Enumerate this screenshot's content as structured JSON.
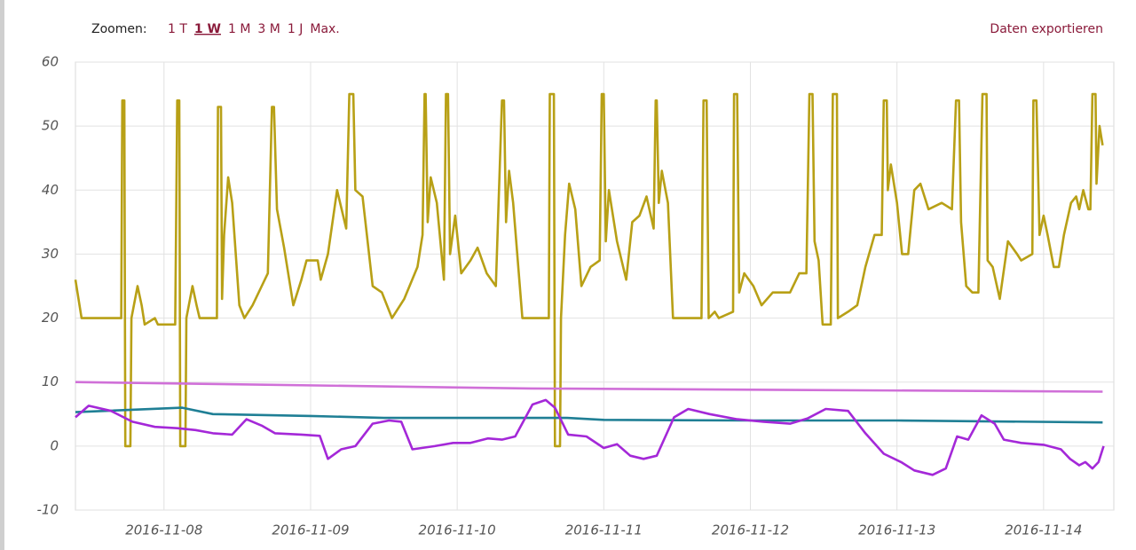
{
  "toolbar": {
    "label": "Zoomen:",
    "zoom": [
      "1 T",
      "1 W",
      "1 M",
      "3 M",
      "1 J",
      "Max."
    ],
    "active": 1,
    "export": "Daten exportieren"
  },
  "chart_data": {
    "type": "line",
    "grid": true,
    "xlim": [
      "2016-11-07T09:30",
      "2016-11-14T11:30"
    ],
    "xticks": [
      "2016-11-08",
      "2016-11-09",
      "2016-11-10",
      "2016-11-11",
      "2016-11-12",
      "2016-11-13",
      "2016-11-14"
    ],
    "ylim": [
      -10,
      60
    ],
    "yticks": [
      -10,
      0,
      10,
      20,
      30,
      40,
      50,
      60
    ],
    "series": [
      {
        "color": "#b8a016",
        "x": [
          "2016-11-07T09:30",
          "2016-11-07T10:30",
          "2016-11-07T17:00",
          "2016-11-07T17:10",
          "2016-11-07T17:30",
          "2016-11-07T17:40",
          "2016-11-07T18:30",
          "2016-11-07T18:40",
          "2016-11-07T19:40",
          "2016-11-07T20:20",
          "2016-11-07T20:50",
          "2016-11-07T22:30",
          "2016-11-07T23:00",
          "2016-11-08T01:50",
          "2016-11-08T02:10",
          "2016-11-08T02:30",
          "2016-11-08T02:40",
          "2016-11-08T03:30",
          "2016-11-08T03:40",
          "2016-11-08T04:40",
          "2016-11-08T05:20",
          "2016-11-08T05:50",
          "2016-11-08T08:40",
          "2016-11-08T08:50",
          "2016-11-08T09:20",
          "2016-11-08T09:30",
          "2016-11-08T09:50",
          "2016-11-08T10:30",
          "2016-11-08T11:10",
          "2016-11-08T12:20",
          "2016-11-08T13:10",
          "2016-11-08T14:30",
          "2016-11-08T16:00",
          "2016-11-08T17:00",
          "2016-11-08T17:40",
          "2016-11-08T18:00",
          "2016-11-08T18:30",
          "2016-11-08T19:40",
          "2016-11-08T21:10",
          "2016-11-08T22:30",
          "2016-11-08T23:20",
          "2016-11-09T01:10",
          "2016-11-09T01:40",
          "2016-11-09T02:50",
          "2016-11-09T04:20",
          "2016-11-09T05:50",
          "2016-11-09T06:20",
          "2016-11-09T07:00",
          "2016-11-09T07:20",
          "2016-11-09T08:30",
          "2016-11-09T10:10",
          "2016-11-09T11:40",
          "2016-11-09T13:20",
          "2016-11-09T15:20",
          "2016-11-09T17:30",
          "2016-11-09T18:20",
          "2016-11-09T18:40",
          "2016-11-09T18:50",
          "2016-11-09T19:10",
          "2016-11-09T19:40",
          "2016-11-09T20:40",
          "2016-11-09T21:50",
          "2016-11-09T22:10",
          "2016-11-09T22:30",
          "2016-11-09T22:50",
          "2016-11-09T23:40",
          "2016-11-10T00:40",
          "2016-11-10T02:10",
          "2016-11-10T03:20",
          "2016-11-10T04:50",
          "2016-11-10T06:20",
          "2016-11-10T07:20",
          "2016-11-10T07:40",
          "2016-11-10T08:00",
          "2016-11-10T08:30",
          "2016-11-10T09:10",
          "2016-11-10T10:40",
          "2016-11-10T15:00",
          "2016-11-10T15:10",
          "2016-11-10T15:50",
          "2016-11-10T16:00",
          "2016-11-10T16:50",
          "2016-11-10T17:00",
          "2016-11-10T17:40",
          "2016-11-10T18:20",
          "2016-11-10T19:20",
          "2016-11-10T20:20",
          "2016-11-10T21:50",
          "2016-11-10T23:20",
          "2016-11-10T23:40",
          "2016-11-11T00:00",
          "2016-11-11T00:20",
          "2016-11-11T00:50",
          "2016-11-11T02:10",
          "2016-11-11T03:40",
          "2016-11-11T04:40",
          "2016-11-11T05:50",
          "2016-11-11T07:00",
          "2016-11-11T08:10",
          "2016-11-11T08:30",
          "2016-11-11T08:40",
          "2016-11-11T09:00",
          "2016-11-11T09:30",
          "2016-11-11T10:30",
          "2016-11-11T11:20",
          "2016-11-11T16:00",
          "2016-11-11T16:20",
          "2016-11-11T16:50",
          "2016-11-11T17:10",
          "2016-11-11T18:10",
          "2016-11-11T18:50",
          "2016-11-11T21:10",
          "2016-11-11T21:20",
          "2016-11-11T21:50",
          "2016-11-11T22:10",
          "2016-11-11T23:00",
          "2016-11-12T00:30",
          "2016-11-12T01:50",
          "2016-11-12T03:40",
          "2016-11-12T06:30",
          "2016-11-12T08:00",
          "2016-11-12T09:10",
          "2016-11-12T09:40",
          "2016-11-12T10:10",
          "2016-11-12T10:30",
          "2016-11-12T11:10",
          "2016-11-12T11:50",
          "2016-11-12T13:10",
          "2016-11-12T13:30",
          "2016-11-12T14:10",
          "2016-11-12T14:20",
          "2016-11-12T16:00",
          "2016-11-12T17:30",
          "2016-11-12T18:50",
          "2016-11-12T20:20",
          "2016-11-12T21:30",
          "2016-11-12T21:50",
          "2016-11-12T22:20",
          "2016-11-12T22:30",
          "2016-11-12T23:00",
          "2016-11-13T00:00",
          "2016-11-13T00:50",
          "2016-11-13T01:50",
          "2016-11-13T02:50",
          "2016-11-13T03:50",
          "2016-11-13T05:10",
          "2016-11-13T07:20",
          "2016-11-13T09:00",
          "2016-11-13T09:40",
          "2016-11-13T10:10",
          "2016-11-13T10:30",
          "2016-11-13T11:20",
          "2016-11-13T12:20",
          "2016-11-13T13:20",
          "2016-11-13T14:00",
          "2016-11-13T14:40",
          "2016-11-13T14:50",
          "2016-11-13T15:40",
          "2016-11-13T16:50",
          "2016-11-13T18:10",
          "2016-11-13T19:40",
          "2016-11-13T20:20",
          "2016-11-13T22:10",
          "2016-11-13T22:20",
          "2016-11-13T22:50",
          "2016-11-13T23:20",
          "2016-11-14T00:00",
          "2016-11-14T00:40",
          "2016-11-14T01:40",
          "2016-11-14T02:30",
          "2016-11-14T03:20",
          "2016-11-14T04:30",
          "2016-11-14T05:20",
          "2016-11-14T05:50",
          "2016-11-14T06:30",
          "2016-11-14T07:20",
          "2016-11-14T07:40",
          "2016-11-14T08:00",
          "2016-11-14T08:30",
          "2016-11-14T08:40",
          "2016-11-14T09:10",
          "2016-11-14T09:40"
        ],
        "values": [
          26,
          20,
          20,
          54,
          54,
          0,
          0,
          20,
          25,
          22,
          19,
          20,
          19,
          19,
          54,
          54,
          0,
          0,
          20,
          25,
          22,
          20,
          20,
          53,
          53,
          23,
          33,
          42,
          38,
          22,
          20,
          22,
          25,
          27,
          53,
          53,
          37,
          31,
          22,
          26,
          29,
          29,
          26,
          30,
          40,
          34,
          55,
          55,
          40,
          39,
          25,
          24,
          20,
          23,
          28,
          33,
          55,
          55,
          35,
          42,
          38,
          26,
          55,
          55,
          30,
          36,
          27,
          29,
          31,
          27,
          25,
          54,
          54,
          35,
          43,
          38,
          20,
          20,
          55,
          55,
          0,
          0,
          20,
          33,
          41,
          37,
          25,
          28,
          29,
          55,
          55,
          32,
          40,
          32,
          26,
          35,
          36,
          39,
          34,
          54,
          54,
          38,
          43,
          38,
          20,
          20,
          54,
          54,
          20,
          21,
          20,
          21,
          55,
          55,
          24,
          27,
          25,
          22,
          24,
          24,
          27,
          27,
          55,
          55,
          32,
          29,
          19,
          19,
          55,
          55,
          20,
          21,
          22,
          28,
          33,
          33,
          54,
          54,
          40,
          44,
          38,
          30,
          30,
          40,
          41,
          37,
          38,
          37,
          54,
          54,
          35,
          25,
          24,
          24,
          55,
          55,
          29,
          28,
          23,
          32,
          30,
          29,
          30,
          54,
          54,
          33,
          36,
          33,
          28,
          28,
          33,
          38,
          39,
          37,
          40,
          37,
          37,
          55,
          55,
          41,
          50,
          47
        ]
      },
      {
        "color": "#d070d8",
        "x": [
          "2016-11-07T09:30",
          "2016-11-10T12:00",
          "2016-11-14T09:40"
        ],
        "values": [
          10,
          9,
          8.5
        ]
      },
      {
        "color": "#1f7f95",
        "x": [
          "2016-11-07T09:30",
          "2016-11-08T03:00",
          "2016-11-08T08:00",
          "2016-11-09T00:00",
          "2016-11-09T12:00",
          "2016-11-10T18:00",
          "2016-11-11T00:00",
          "2016-11-12T00:00",
          "2016-11-13T00:00",
          "2016-11-14T09:40"
        ],
        "values": [
          5.3,
          6.0,
          5,
          4.7,
          4.4,
          4.4,
          4.1,
          4.0,
          4.0,
          3.7
        ]
      },
      {
        "color": "#a428d8",
        "x": [
          "2016-11-07T09:30",
          "2016-11-07T11:40",
          "2016-11-07T15:20",
          "2016-11-07T18:50",
          "2016-11-07T22:30",
          "2016-11-08T02:10",
          "2016-11-08T05:10",
          "2016-11-08T08:00",
          "2016-11-08T11:10",
          "2016-11-08T13:30",
          "2016-11-08T16:00",
          "2016-11-08T18:10",
          "2016-11-08T22:30",
          "2016-11-09T01:30",
          "2016-11-09T02:50",
          "2016-11-09T05:00",
          "2016-11-09T07:20",
          "2016-11-09T10:10",
          "2016-11-09T12:50",
          "2016-11-09T14:50",
          "2016-11-09T16:40",
          "2016-11-09T20:20",
          "2016-11-09T23:20",
          "2016-11-10T02:10",
          "2016-11-10T05:00",
          "2016-11-10T07:20",
          "2016-11-10T09:30",
          "2016-11-10T12:20",
          "2016-11-10T14:30",
          "2016-11-10T16:00",
          "2016-11-10T18:10",
          "2016-11-10T21:10",
          "2016-11-11T00:00",
          "2016-11-11T02:10",
          "2016-11-11T04:20",
          "2016-11-11T06:30",
          "2016-11-11T08:40",
          "2016-11-11T11:30",
          "2016-11-11T13:50",
          "2016-11-11T17:20",
          "2016-11-11T21:50",
          "2016-11-12T02:10",
          "2016-11-12T06:30",
          "2016-11-12T09:20",
          "2016-11-12T12:20",
          "2016-11-12T16:00",
          "2016-11-12T18:50",
          "2016-11-12T21:50",
          "2016-11-13T00:40",
          "2016-11-13T02:50",
          "2016-11-13T05:50",
          "2016-11-13T08:00",
          "2016-11-13T09:50",
          "2016-11-13T11:40",
          "2016-11-13T13:50",
          "2016-11-13T16:00",
          "2016-11-13T17:30",
          "2016-11-13T20:20",
          "2016-11-14T00:00",
          "2016-11-14T02:50",
          "2016-11-14T04:20",
          "2016-11-14T05:50",
          "2016-11-14T06:50",
          "2016-11-14T08:00",
          "2016-11-14T09:00",
          "2016-11-14T09:50"
        ],
        "values": [
          4.5,
          6.3,
          5.5,
          3.8,
          3.0,
          2.8,
          2.5,
          2.0,
          1.8,
          4.2,
          3.2,
          2.0,
          1.8,
          1.6,
          -2.0,
          -0.5,
          0,
          3.5,
          4.0,
          3.8,
          -0.5,
          0,
          0.5,
          0.5,
          1.2,
          1.0,
          1.5,
          6.5,
          7.2,
          6.0,
          1.8,
          1.5,
          -0.3,
          0.3,
          -1.5,
          -2.0,
          -1.5,
          4.5,
          5.8,
          5.0,
          4.2,
          3.8,
          3.5,
          4.3,
          5.8,
          5.5,
          2.0,
          -1.2,
          -2.5,
          -3.8,
          -4.5,
          -3.5,
          1.5,
          1.0,
          4.8,
          3.5,
          1.0,
          0.5,
          0.2,
          -0.5,
          -2.0,
          -3.0,
          -2.5,
          -3.5,
          -2.5,
          0
        ]
      }
    ]
  }
}
